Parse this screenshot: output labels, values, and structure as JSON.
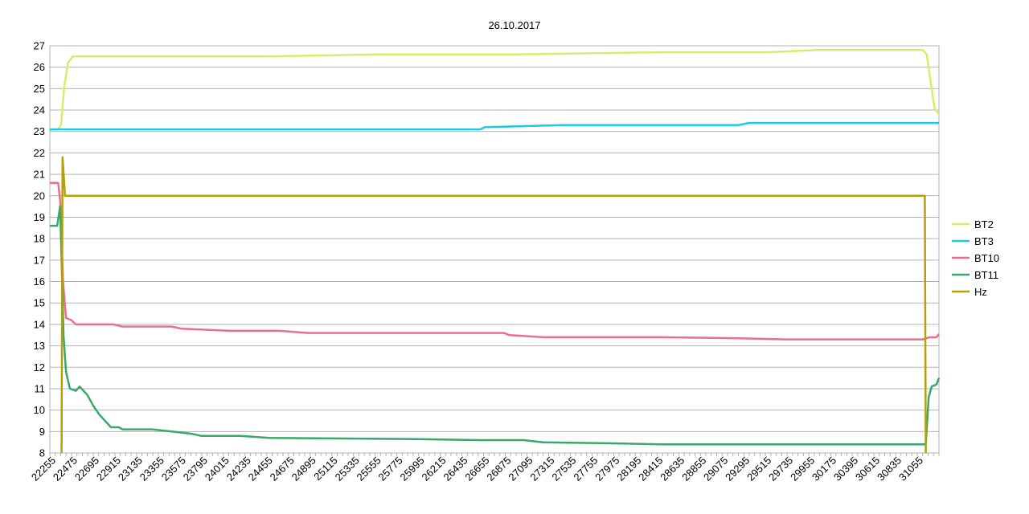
{
  "chart_data": {
    "type": "line",
    "title": "26.10.2017",
    "xlabel": "",
    "ylabel": "",
    "xlim": [
      22255,
      31345
    ],
    "ylim": [
      8,
      27
    ],
    "y_ticks": [
      8,
      9,
      10,
      11,
      12,
      13,
      14,
      15,
      16,
      17,
      18,
      19,
      20,
      21,
      22,
      23,
      24,
      25,
      26,
      27
    ],
    "x_tick_labels": [
      "22255",
      "22475",
      "22695",
      "22915",
      "23135",
      "23355",
      "23575",
      "23795",
      "24015",
      "24235",
      "24455",
      "24675",
      "24895",
      "25115",
      "25335",
      "25555",
      "25775",
      "25995",
      "26215",
      "26435",
      "26655",
      "26875",
      "27095",
      "27315",
      "27535",
      "27755",
      "27975",
      "28195",
      "28415",
      "28635",
      "28855",
      "29075",
      "29295",
      "29515",
      "29735",
      "29955",
      "30175",
      "30395",
      "30615",
      "30835",
      "31055"
    ],
    "grid": "horizontal",
    "legend_position": "right",
    "series": [
      {
        "name": "BT2",
        "color": "#d8ec6a",
        "points": [
          [
            22255,
            23.1
          ],
          [
            22340,
            23.1
          ],
          [
            22370,
            23.3
          ],
          [
            22400,
            25.0
          ],
          [
            22440,
            26.2
          ],
          [
            22490,
            26.5
          ],
          [
            23000,
            26.5
          ],
          [
            24455,
            26.5
          ],
          [
            25600,
            26.6
          ],
          [
            27000,
            26.6
          ],
          [
            28500,
            26.7
          ],
          [
            29600,
            26.7
          ],
          [
            30100,
            26.8
          ],
          [
            31180,
            26.8
          ],
          [
            31220,
            26.6
          ],
          [
            31260,
            25.3
          ],
          [
            31300,
            24.1
          ],
          [
            31345,
            23.8
          ]
        ]
      },
      {
        "name": "BT3",
        "color": "#1ec8e6",
        "points": [
          [
            22255,
            23.1
          ],
          [
            26655,
            23.1
          ],
          [
            26700,
            23.2
          ],
          [
            27500,
            23.3
          ],
          [
            29300,
            23.3
          ],
          [
            29400,
            23.4
          ],
          [
            31345,
            23.4
          ]
        ]
      },
      {
        "name": "BT10",
        "color": "#ec6e8a",
        "points": [
          [
            22255,
            20.6
          ],
          [
            22340,
            20.6
          ],
          [
            22360,
            19.8
          ],
          [
            22390,
            16.0
          ],
          [
            22420,
            14.3
          ],
          [
            22475,
            14.2
          ],
          [
            22520,
            14.0
          ],
          [
            22900,
            14.0
          ],
          [
            23000,
            13.9
          ],
          [
            23500,
            13.9
          ],
          [
            23600,
            13.8
          ],
          [
            24100,
            13.7
          ],
          [
            24600,
            13.7
          ],
          [
            24900,
            13.6
          ],
          [
            26900,
            13.6
          ],
          [
            26950,
            13.5
          ],
          [
            27300,
            13.4
          ],
          [
            28500,
            13.4
          ],
          [
            29300,
            13.35
          ],
          [
            29800,
            13.3
          ],
          [
            31180,
            13.3
          ],
          [
            31250,
            13.4
          ],
          [
            31320,
            13.4
          ],
          [
            31345,
            13.55
          ]
        ]
      },
      {
        "name": "BT11",
        "color": "#3aa86a",
        "points": [
          [
            22255,
            18.6
          ],
          [
            22330,
            18.6
          ],
          [
            22360,
            19.5
          ],
          [
            22375,
            17.0
          ],
          [
            22395,
            13.5
          ],
          [
            22420,
            11.8
          ],
          [
            22460,
            11.0
          ],
          [
            22520,
            10.9
          ],
          [
            22560,
            11.1
          ],
          [
            22640,
            10.7
          ],
          [
            22700,
            10.2
          ],
          [
            22760,
            9.8
          ],
          [
            22820,
            9.5
          ],
          [
            22880,
            9.2
          ],
          [
            22960,
            9.2
          ],
          [
            23000,
            9.1
          ],
          [
            23300,
            9.1
          ],
          [
            23500,
            9.0
          ],
          [
            23700,
            8.9
          ],
          [
            23800,
            8.8
          ],
          [
            24200,
            8.8
          ],
          [
            24500,
            8.7
          ],
          [
            26000,
            8.65
          ],
          [
            26655,
            8.6
          ],
          [
            27100,
            8.6
          ],
          [
            27300,
            8.5
          ],
          [
            28000,
            8.45
          ],
          [
            28500,
            8.4
          ],
          [
            30100,
            8.4
          ],
          [
            31150,
            8.4
          ],
          [
            31210,
            8.4
          ],
          [
            31240,
            10.6
          ],
          [
            31270,
            11.1
          ],
          [
            31320,
            11.2
          ],
          [
            31345,
            11.5
          ]
        ]
      },
      {
        "name": "Hz",
        "color": "#b5a00c",
        "points": [
          [
            22375,
            8.0
          ],
          [
            22385,
            21.8
          ],
          [
            22410,
            20.0
          ],
          [
            31180,
            20.0
          ],
          [
            31200,
            20.0
          ],
          [
            31210,
            8.0
          ]
        ]
      }
    ]
  }
}
